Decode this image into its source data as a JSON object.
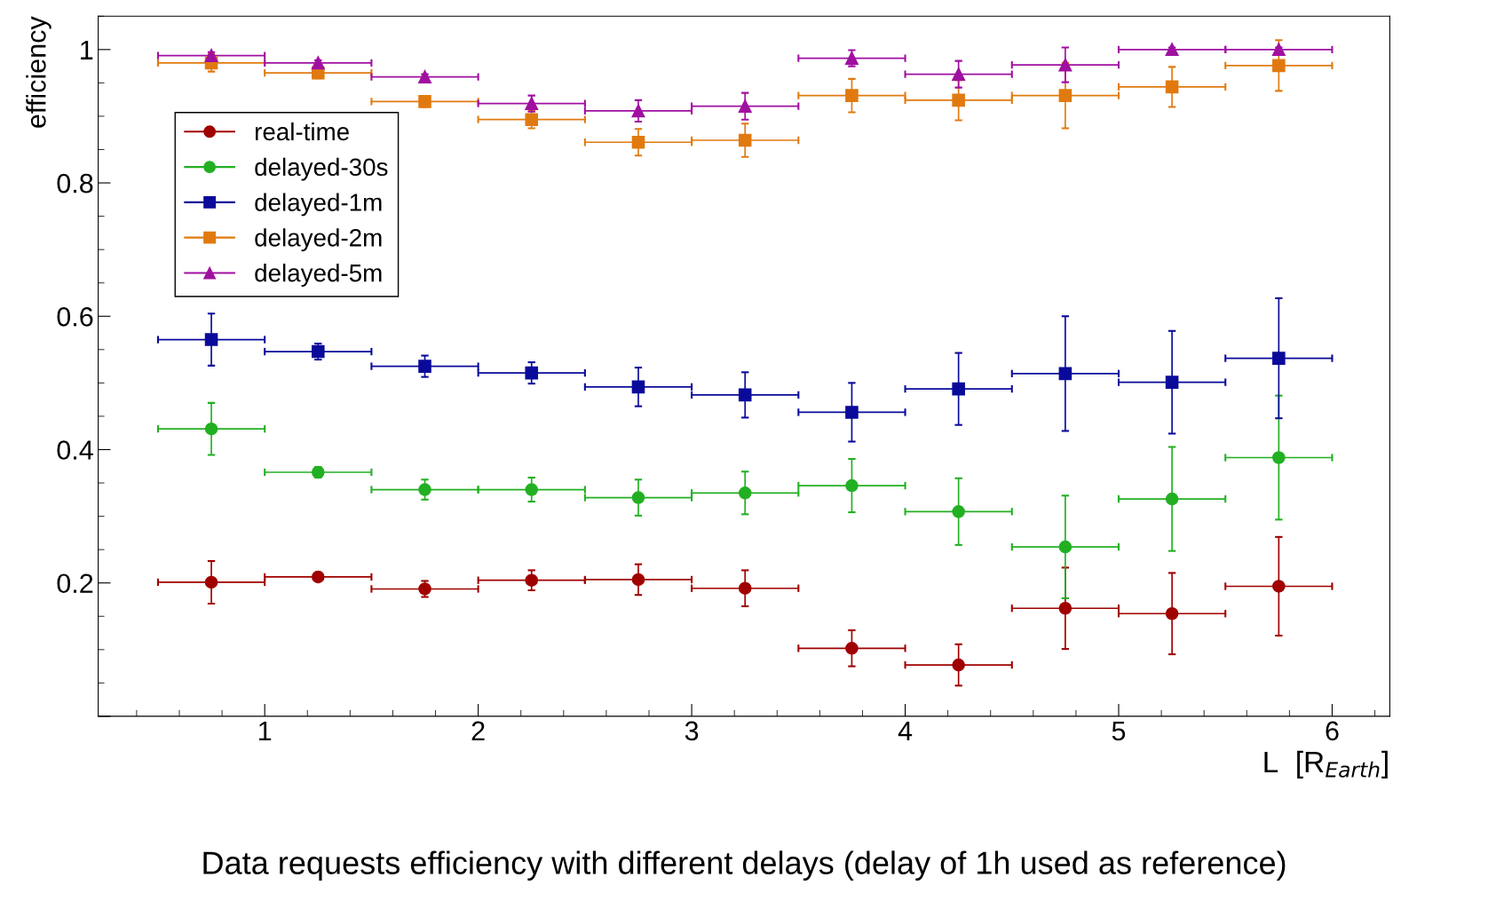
{
  "chart_data": {
    "type": "scatter",
    "title": "Data requests efficiency with different delays (delay of 1h used as reference)",
    "xlabel": "L  [R$_{Earth}$]",
    "ylabel": "efficiency",
    "x": [
      0.75,
      1.25,
      1.75,
      2.25,
      2.75,
      3.25,
      3.75,
      4.25,
      4.75,
      5.25,
      5.75
    ],
    "xlim": [
      0.22,
      6.27
    ],
    "xticks": [
      1,
      2,
      3,
      4,
      5,
      6
    ],
    "ylim": [
      0,
      1.05
    ],
    "yticks": [
      {
        "value": 0,
        "label": null
      },
      0.2,
      0.4,
      0.6,
      0.8,
      1
    ],
    "grid": false,
    "legend": "top left",
    "line_style": "solid",
    "series": [
      {
        "name": "real-time",
        "color": "#a00000",
        "marker": "circle",
        "values": [
          0.201,
          0.209,
          0.191,
          0.204,
          0.205,
          0.192,
          0.102,
          0.077,
          0.162,
          0.154,
          0.195
        ],
        "errors": [
          0.032,
          0.006,
          0.012,
          0.015,
          0.023,
          0.027,
          0.027,
          0.031,
          0.061,
          0.061,
          0.074
        ],
        "xerrors": [
          0.25,
          0.25,
          0.25,
          0.25,
          0.25,
          0.25,
          0.25,
          0.25,
          0.25,
          0.25,
          0.25
        ]
      },
      {
        "name": "delayed-30s",
        "color": "#22b022",
        "marker": "circle",
        "values": [
          0.431,
          0.366,
          0.34,
          0.34,
          0.328,
          0.335,
          0.346,
          0.307,
          0.254,
          0.326,
          0.388
        ],
        "errors": [
          0.039,
          0.008,
          0.015,
          0.018,
          0.027,
          0.032,
          0.04,
          0.05,
          0.077,
          0.078,
          0.093
        ],
        "xerrors": [
          0.25,
          0.25,
          0.25,
          0.25,
          0.25,
          0.25,
          0.25,
          0.25,
          0.25,
          0.25,
          0.25
        ]
      },
      {
        "name": "delayed-1m",
        "color": "#0a0a9a",
        "marker": "square",
        "values": [
          0.565,
          0.547,
          0.525,
          0.515,
          0.494,
          0.482,
          0.456,
          0.491,
          0.514,
          0.501,
          0.537
        ],
        "errors": [
          0.039,
          0.012,
          0.016,
          0.016,
          0.029,
          0.034,
          0.044,
          0.054,
          0.086,
          0.077,
          0.09
        ],
        "xerrors": [
          0.25,
          0.25,
          0.25,
          0.25,
          0.25,
          0.25,
          0.25,
          0.25,
          0.25,
          0.25,
          0.25
        ]
      },
      {
        "name": "delayed-2m",
        "color": "#e07a10",
        "marker": "square",
        "values": [
          0.98,
          0.965,
          0.922,
          0.895,
          0.861,
          0.864,
          0.931,
          0.924,
          0.931,
          0.944,
          0.976
        ],
        "errors": [
          0.013,
          0.008,
          0.008,
          0.013,
          0.02,
          0.025,
          0.025,
          0.03,
          0.049,
          0.03,
          0.038
        ],
        "xerrors": [
          0.25,
          0.25,
          0.25,
          0.25,
          0.25,
          0.25,
          0.25,
          0.25,
          0.25,
          0.25,
          0.25
        ]
      },
      {
        "name": "delayed-5m",
        "color": "#a010a0",
        "marker": "triangle",
        "values": [
          0.991,
          0.98,
          0.959,
          0.919,
          0.908,
          0.915,
          0.987,
          0.963,
          0.977,
          1.0,
          1.0
        ],
        "errors": [
          0.005,
          0.004,
          0.004,
          0.012,
          0.016,
          0.02,
          0.012,
          0.02,
          0.026,
          0.003,
          0.003
        ],
        "xerrors": [
          0.25,
          0.25,
          0.25,
          0.25,
          0.25,
          0.25,
          0.25,
          0.25,
          0.25,
          0.25,
          0.25
        ]
      }
    ]
  }
}
